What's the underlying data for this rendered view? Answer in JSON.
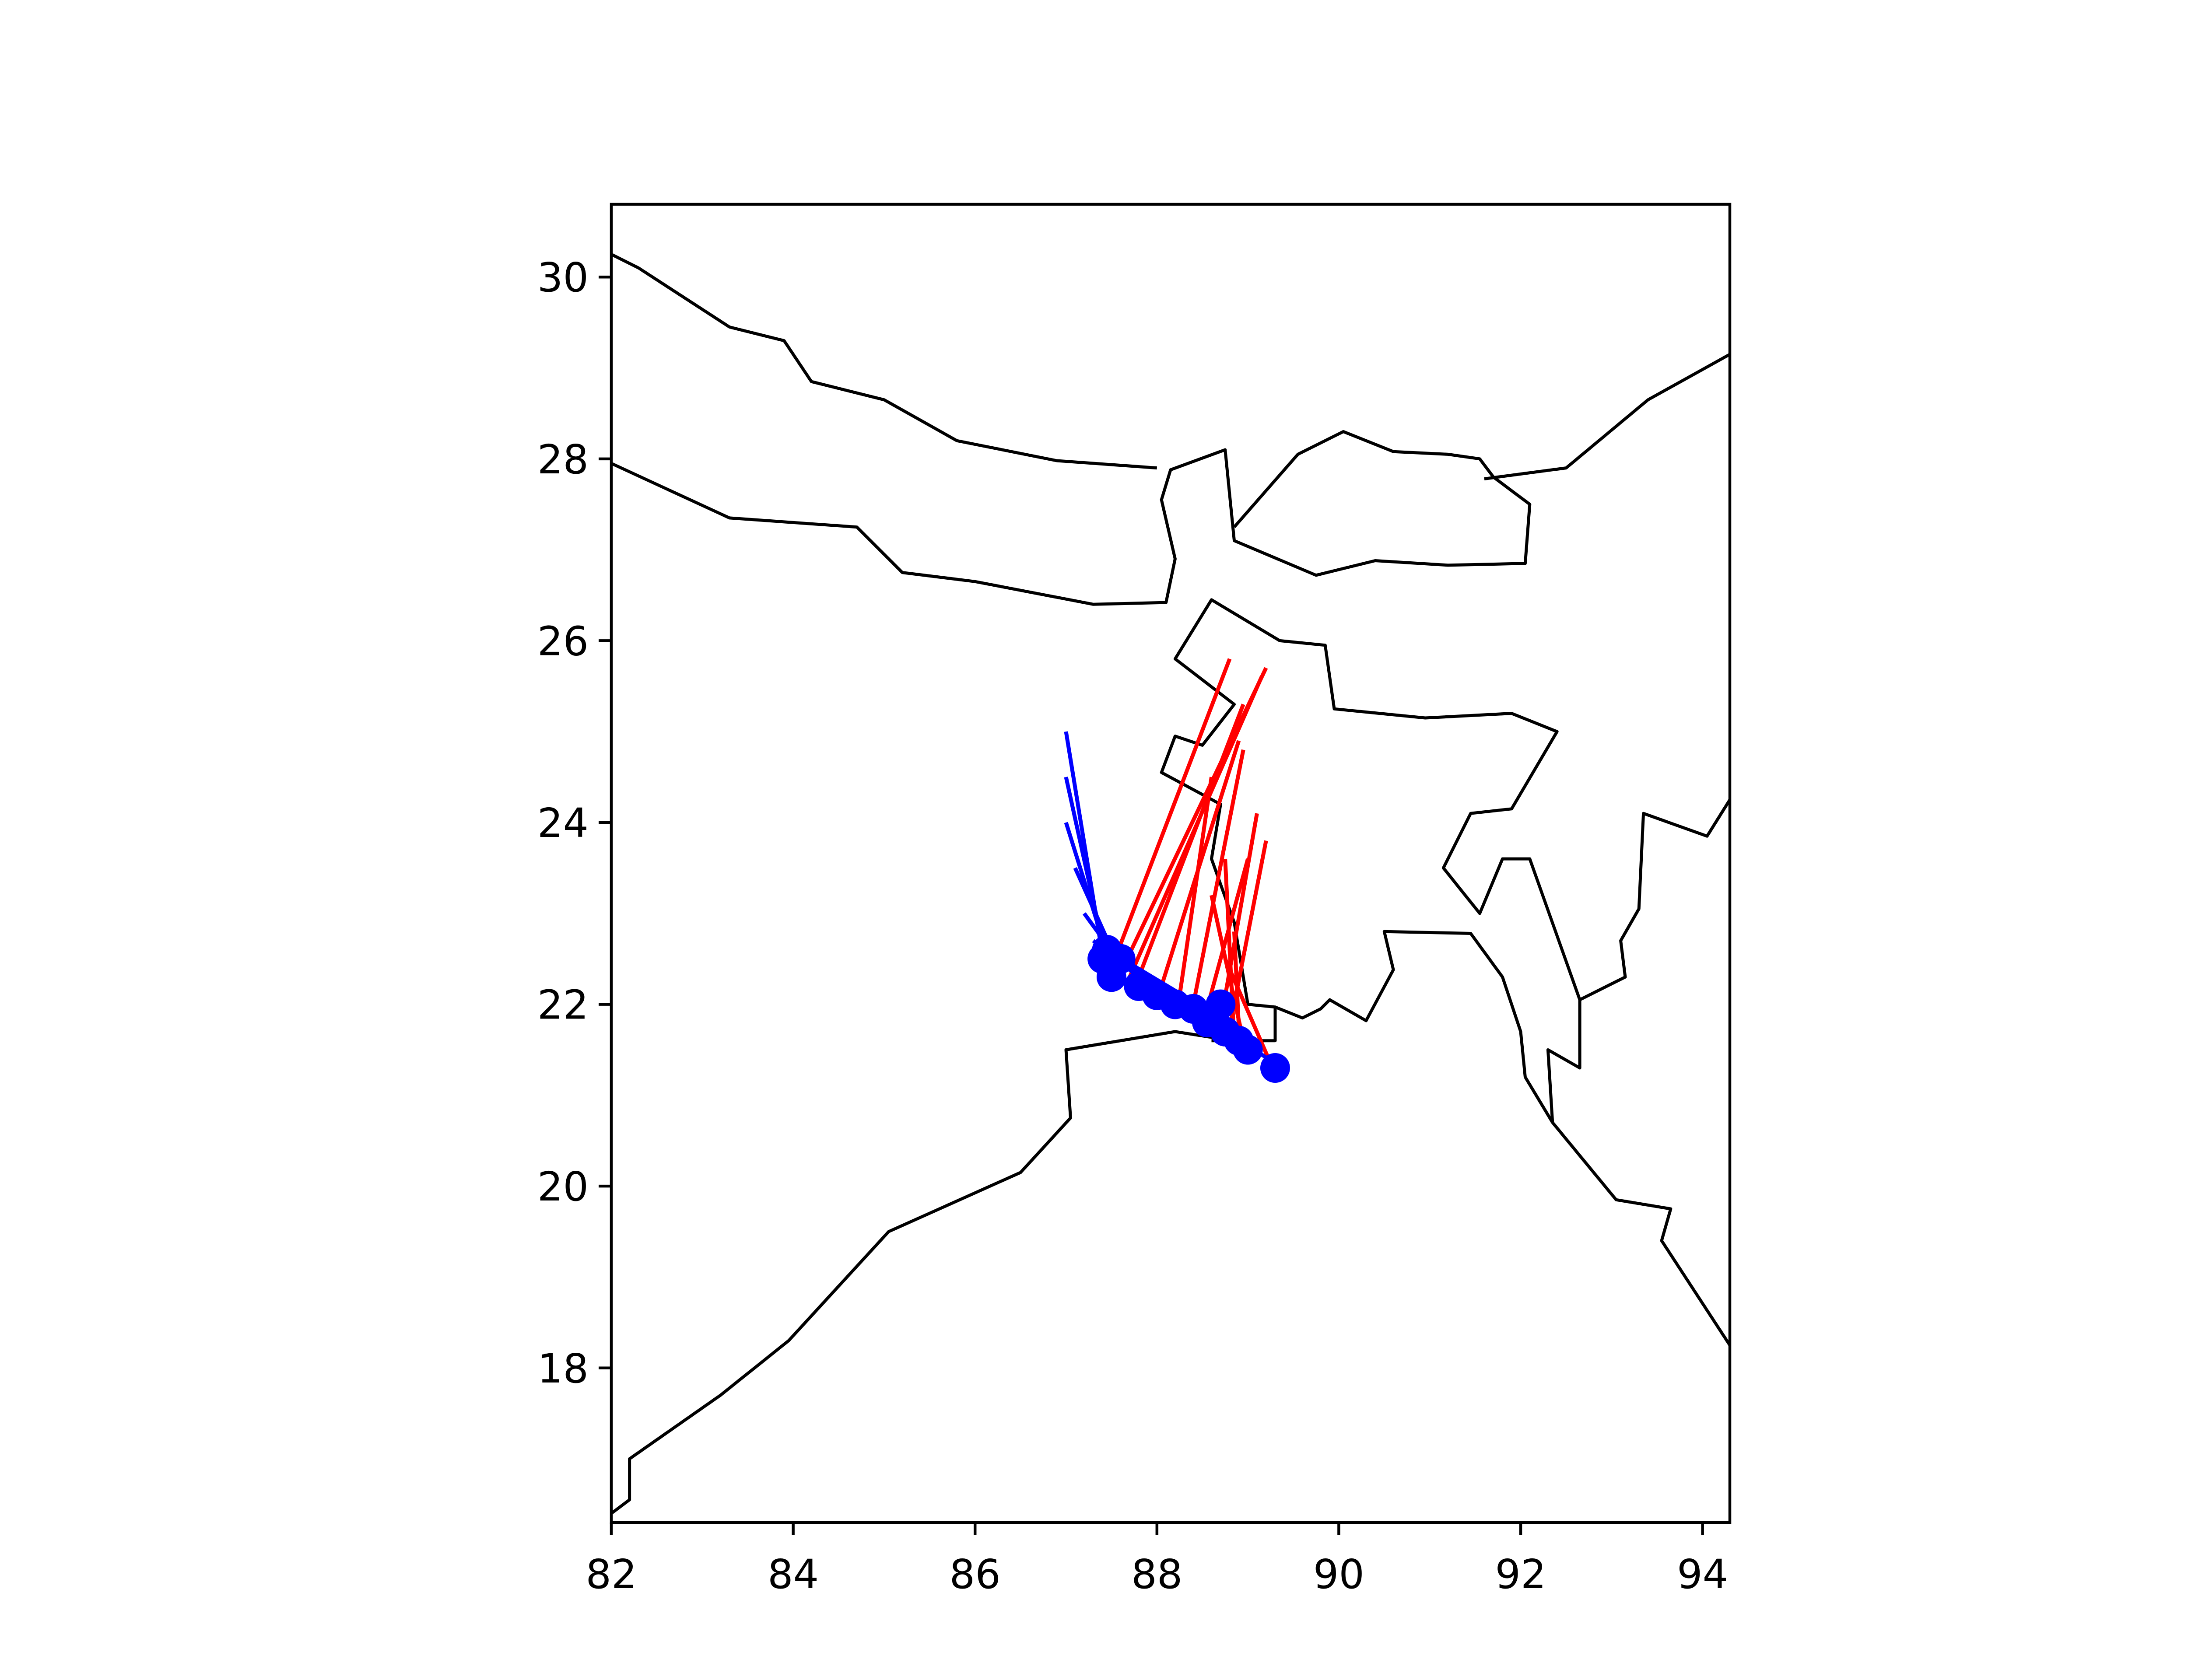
{
  "chart_data": {
    "type": "map",
    "title": "",
    "xlabel": "",
    "ylabel": "",
    "xlim": [
      82.0,
      94.3
    ],
    "ylim": [
      16.3,
      30.8
    ],
    "grid": false,
    "x_ticks": [
      "82",
      "84",
      "86",
      "88",
      "90",
      "92",
      "94"
    ],
    "y_ticks": [
      "18",
      "20",
      "22",
      "24",
      "26",
      "28",
      "30"
    ],
    "colors": {
      "borders": "#000000",
      "blue_series": "#0000ff",
      "red_series": "#ff0000"
    },
    "borders": [
      [
        [
          82.0,
          30.25
        ],
        [
          82.3,
          30.1
        ],
        [
          83.3,
          29.45
        ],
        [
          83.9,
          29.3
        ],
        [
          84.2,
          28.85
        ],
        [
          85.0,
          28.65
        ],
        [
          85.8,
          28.2
        ],
        [
          86.9,
          27.98
        ],
        [
          88.0,
          27.9
        ]
      ],
      [
        [
          82.0,
          27.95
        ],
        [
          83.3,
          27.35
        ],
        [
          84.7,
          27.25
        ],
        [
          85.2,
          26.75
        ],
        [
          86.0,
          26.65
        ],
        [
          87.3,
          26.4
        ],
        [
          88.1,
          26.42
        ],
        [
          88.2,
          26.9
        ],
        [
          88.05,
          27.55
        ],
        [
          88.15,
          27.88
        ],
        [
          88.75,
          28.1
        ],
        [
          88.85,
          27.1
        ],
        [
          89.75,
          26.72
        ],
        [
          90.4,
          26.88
        ],
        [
          91.2,
          26.83
        ],
        [
          92.05,
          26.85
        ],
        [
          92.1,
          27.5
        ],
        [
          91.7,
          27.8
        ],
        [
          91.55,
          28.0
        ],
        [
          91.2,
          28.05
        ],
        [
          90.6,
          28.08
        ],
        [
          90.05,
          28.3
        ],
        [
          89.55,
          28.05
        ],
        [
          88.85,
          27.25
        ]
      ],
      [
        [
          91.6,
          27.78
        ],
        [
          92.5,
          27.9
        ],
        [
          93.4,
          28.65
        ],
        [
          94.3,
          29.15
        ]
      ],
      [
        [
          82.0,
          16.4
        ],
        [
          82.2,
          16.55
        ],
        [
          82.2,
          17.0
        ],
        [
          83.2,
          17.7
        ],
        [
          83.95,
          18.3
        ],
        [
          85.05,
          19.5
        ],
        [
          86.5,
          20.15
        ],
        [
          87.05,
          20.75
        ],
        [
          87.0,
          21.5
        ],
        [
          88.2,
          21.7
        ],
        [
          89.15,
          21.55
        ]
      ],
      [
        [
          88.6,
          21.6
        ],
        [
          89.3,
          21.6
        ],
        [
          89.3,
          21.97
        ],
        [
          89.6,
          21.85
        ],
        [
          89.8,
          21.95
        ],
        [
          89.9,
          22.05
        ],
        [
          90.3,
          21.82
        ],
        [
          90.6,
          22.38
        ],
        [
          90.5,
          22.8
        ],
        [
          91.45,
          22.78
        ],
        [
          91.8,
          22.3
        ],
        [
          92.0,
          21.7
        ],
        [
          92.05,
          21.2
        ],
        [
          92.35,
          20.7
        ],
        [
          93.05,
          19.85
        ],
        [
          93.65,
          19.75
        ],
        [
          93.55,
          19.4
        ],
        [
          94.3,
          18.25
        ]
      ],
      [
        [
          92.35,
          20.7
        ],
        [
          92.3,
          21.5
        ],
        [
          92.65,
          21.3
        ],
        [
          92.65,
          22.05
        ],
        [
          93.15,
          22.3
        ],
        [
          93.1,
          22.7
        ],
        [
          93.3,
          23.05
        ],
        [
          93.35,
          24.1
        ],
        [
          94.05,
          23.85
        ],
        [
          94.3,
          24.25
        ]
      ],
      [
        [
          92.65,
          22.05
        ],
        [
          92.1,
          23.6
        ],
        [
          91.8,
          23.6
        ],
        [
          91.55,
          23.0
        ],
        [
          91.15,
          23.5
        ],
        [
          91.45,
          24.1
        ],
        [
          91.9,
          24.15
        ],
        [
          92.4,
          25.0
        ],
        [
          91.9,
          25.2
        ],
        [
          90.95,
          25.15
        ],
        [
          89.95,
          25.25
        ],
        [
          89.85,
          25.95
        ],
        [
          89.35,
          26.0
        ],
        [
          88.6,
          26.45
        ],
        [
          88.2,
          25.8
        ],
        [
          88.85,
          25.3
        ],
        [
          88.5,
          24.85
        ],
        [
          88.2,
          24.95
        ],
        [
          88.05,
          24.55
        ],
        [
          88.7,
          24.2
        ],
        [
          88.6,
          23.6
        ],
        [
          88.85,
          22.9
        ],
        [
          89.0,
          22.0
        ],
        [
          89.3,
          21.97
        ]
      ]
    ],
    "series": [
      {
        "color": "blue",
        "markers": [
          [
            87.4,
            22.5
          ],
          [
            87.5,
            22.3
          ],
          [
            87.8,
            22.2
          ],
          [
            88.0,
            22.1
          ],
          [
            88.2,
            22.0
          ],
          [
            88.4,
            21.95
          ],
          [
            88.6,
            21.85
          ],
          [
            88.75,
            21.7
          ],
          [
            88.9,
            21.6
          ],
          [
            89.0,
            21.5
          ],
          [
            89.3,
            21.3
          ],
          [
            88.7,
            22.0
          ],
          [
            88.55,
            21.8
          ],
          [
            87.6,
            22.5
          ],
          [
            87.45,
            22.6
          ]
        ],
        "segments": [
          [
            [
              87.4,
              22.55
            ],
            [
              87.0,
              25.0
            ]
          ],
          [
            [
              87.45,
              22.45
            ],
            [
              87.0,
              24.5
            ]
          ],
          [
            [
              87.5,
              22.4
            ],
            [
              87.0,
              24.0
            ]
          ],
          [
            [
              87.55,
              22.5
            ],
            [
              87.1,
              23.5
            ]
          ],
          [
            [
              87.6,
              22.45
            ],
            [
              87.2,
              23.0
            ]
          ],
          [
            [
              87.8,
              22.3
            ],
            [
              87.3,
              22.7
            ]
          ],
          [
            [
              87.9,
              22.25
            ],
            [
              87.35,
              22.65
            ]
          ],
          [
            [
              88.1,
              22.15
            ],
            [
              87.4,
              22.6
            ]
          ],
          [
            [
              88.3,
              22.05
            ],
            [
              87.5,
              22.55
            ]
          ],
          [
            [
              88.5,
              21.95
            ],
            [
              87.6,
              22.5
            ]
          ],
          [
            [
              88.7,
              21.85
            ],
            [
              87.7,
              22.45
            ]
          ],
          [
            [
              88.9,
              21.7
            ],
            [
              87.8,
              22.35
            ]
          ],
          [
            [
              89.1,
              21.55
            ],
            [
              87.9,
              22.3
            ]
          ],
          [
            [
              89.3,
              21.35
            ],
            [
              88.0,
              22.2
            ]
          ]
        ]
      },
      {
        "color": "red",
        "segments": [
          [
            [
              87.5,
              22.4
            ],
            [
              88.8,
              25.8
            ]
          ],
          [
            [
              87.6,
              22.35
            ],
            [
              89.2,
              25.7
            ]
          ],
          [
            [
              87.7,
              22.3
            ],
            [
              89.15,
              25.6
            ]
          ],
          [
            [
              87.8,
              22.3
            ],
            [
              88.95,
              25.3
            ]
          ],
          [
            [
              88.05,
              22.2
            ],
            [
              88.9,
              24.9
            ]
          ],
          [
            [
              88.25,
              22.1
            ],
            [
              88.6,
              24.5
            ]
          ],
          [
            [
              88.4,
              22.0
            ],
            [
              88.95,
              24.8
            ]
          ],
          [
            [
              88.55,
              21.95
            ],
            [
              89.0,
              23.6
            ]
          ],
          [
            [
              88.7,
              21.8
            ],
            [
              89.1,
              24.1
            ]
          ],
          [
            [
              88.8,
              21.75
            ],
            [
              89.2,
              23.8
            ]
          ],
          [
            [
              88.85,
              21.6
            ],
            [
              88.75,
              23.6
            ]
          ],
          [
            [
              88.9,
              21.75
            ],
            [
              88.85,
              22.8
            ]
          ],
          [
            [
              88.95,
              21.6
            ],
            [
              88.6,
              23.2
            ]
          ],
          [
            [
              89.25,
              21.35
            ],
            [
              88.75,
              22.5
            ]
          ]
        ]
      }
    ]
  }
}
